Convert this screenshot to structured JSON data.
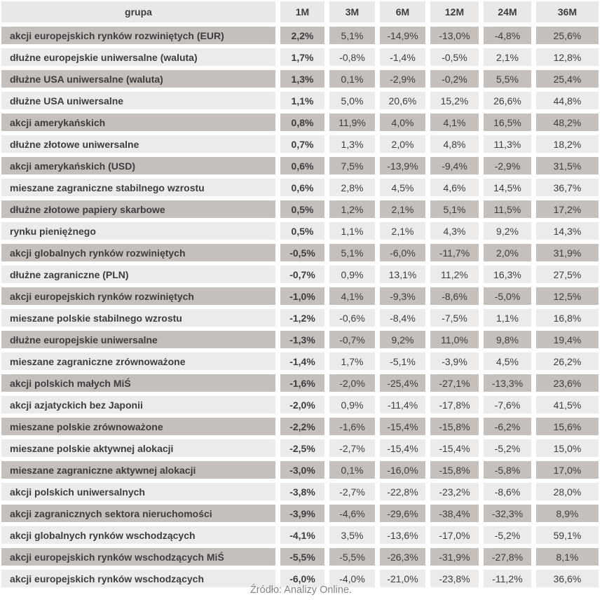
{
  "chart_data": {
    "type": "table",
    "columns": [
      "grupa",
      "1M",
      "3M",
      "6M",
      "12M",
      "24M",
      "36M"
    ],
    "rows": [
      [
        "akcji europejskich rynków rozwiniętych (EUR)",
        "2,2%",
        "5,1%",
        "-14,9%",
        "-13,0%",
        "-4,8%",
        "25,6%"
      ],
      [
        "dłużne europejskie uniwersalne (waluta)",
        "1,7%",
        "-0,8%",
        "-1,4%",
        "-0,5%",
        "2,1%",
        "12,8%"
      ],
      [
        "dłużne USA uniwersalne (waluta)",
        "1,3%",
        "0,1%",
        "-2,9%",
        "-0,2%",
        "5,5%",
        "25,4%"
      ],
      [
        "dłużne USA uniwersalne",
        "1,1%",
        "5,0%",
        "20,6%",
        "15,2%",
        "26,6%",
        "44,8%"
      ],
      [
        "akcji amerykańskich",
        "0,8%",
        "11,9%",
        "4,0%",
        "4,1%",
        "16,5%",
        "48,2%"
      ],
      [
        "dłużne złotowe uniwersalne",
        "0,7%",
        "1,3%",
        "2,0%",
        "4,8%",
        "11,3%",
        "18,2%"
      ],
      [
        "akcji amerykańskich (USD)",
        "0,6%",
        "7,5%",
        "-13,9%",
        "-9,4%",
        "-2,9%",
        "31,5%"
      ],
      [
        "mieszane zagraniczne stabilnego wzrostu",
        "0,6%",
        "2,8%",
        "4,5%",
        "4,6%",
        "14,5%",
        "36,7%"
      ],
      [
        "dłużne złotowe papiery skarbowe",
        "0,5%",
        "1,2%",
        "2,1%",
        "5,1%",
        "11,5%",
        "17,2%"
      ],
      [
        "rynku pieniężnego",
        "0,5%",
        "1,1%",
        "2,1%",
        "4,3%",
        "9,2%",
        "14,3%"
      ],
      [
        "akcji globalnych rynków rozwiniętych",
        "-0,5%",
        "5,1%",
        "-6,0%",
        "-11,7%",
        "2,0%",
        "31,9%"
      ],
      [
        "dłużne zagraniczne (PLN)",
        "-0,7%",
        "0,9%",
        "13,1%",
        "11,2%",
        "16,3%",
        "27,5%"
      ],
      [
        "akcji europejskich rynków rozwiniętych",
        "-1,0%",
        "4,1%",
        "-9,3%",
        "-8,6%",
        "-5,0%",
        "12,5%"
      ],
      [
        "mieszane polskie stabilnego wzrostu",
        "-1,2%",
        "-0,6%",
        "-8,4%",
        "-7,5%",
        "1,1%",
        "16,8%"
      ],
      [
        "dłużne europejskie uniwersalne",
        "-1,3%",
        "-0,7%",
        "9,2%",
        "11,0%",
        "9,8%",
        "19,4%"
      ],
      [
        "mieszane zagraniczne zrównoważone",
        "-1,4%",
        "1,7%",
        "-5,1%",
        "-3,9%",
        "4,5%",
        "26,2%"
      ],
      [
        "akcji polskich małych MiŚ",
        "-1,6%",
        "-2,0%",
        "-25,4%",
        "-27,1%",
        "-13,3%",
        "23,6%"
      ],
      [
        "akcji azjatyckich bez Japonii",
        "-2,0%",
        "0,9%",
        "-11,4%",
        "-17,8%",
        "-7,6%",
        "41,5%"
      ],
      [
        "mieszane polskie zrównoważone",
        "-2,2%",
        "-1,6%",
        "-15,4%",
        "-15,8%",
        "-6,2%",
        "15,6%"
      ],
      [
        "mieszane polskie aktywnej alokacji",
        "-2,5%",
        "-2,7%",
        "-15,4%",
        "-15,4%",
        "-5,2%",
        "15,0%"
      ],
      [
        "mieszane zagraniczne aktywnej alokacji",
        "-3,0%",
        "0,1%",
        "-16,0%",
        "-15,8%",
        "-5,8%",
        "17,0%"
      ],
      [
        "akcji polskich uniwersalnych",
        "-3,8%",
        "-2,7%",
        "-22,8%",
        "-23,2%",
        "-8,6%",
        "28,0%"
      ],
      [
        "akcji zagranicznych sektora nieruchomości",
        "-3,9%",
        "-4,6%",
        "-29,6%",
        "-38,4%",
        "-32,3%",
        "8,9%"
      ],
      [
        "akcji globalnych rynków wschodzących",
        "-4,1%",
        "3,5%",
        "-13,6%",
        "-17,0%",
        "-5,2%",
        "59,1%"
      ],
      [
        "akcji europejskich rynków wschodzących MiŚ",
        "-5,5%",
        "-5,5%",
        "-26,3%",
        "-31,9%",
        "-27,8%",
        "8,1%"
      ],
      [
        "akcji europejskich rynków wschodzących",
        "-6,0%",
        "-4,0%",
        "-21,0%",
        "-23,8%",
        "-11,2%",
        "36,6%"
      ]
    ],
    "layout": {
      "row_shading": "alternating, first data row dark",
      "first_value_column_bold": true,
      "grid": "white gutters between cells"
    }
  },
  "footer": {
    "source": "Źródło: Analizy Online."
  },
  "colors": {
    "row_dark": "#c6c0bd",
    "row_light": "#edebea",
    "header_bg": "#eae8e7",
    "text": "#3d3d3d",
    "source_text": "#838383",
    "background": "#ffffff"
  }
}
